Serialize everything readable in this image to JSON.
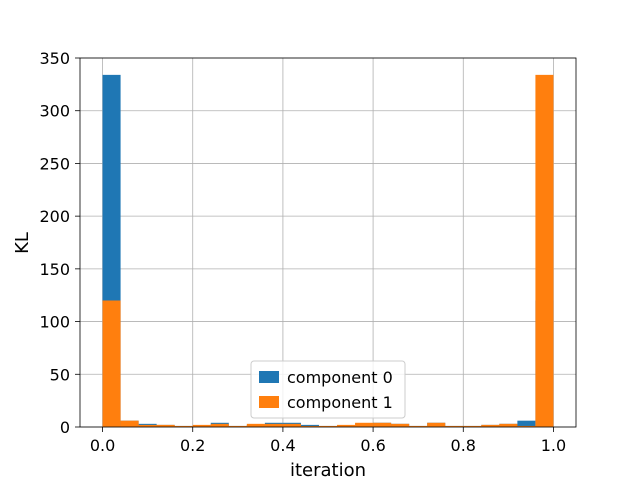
{
  "chart_data": {
    "type": "bar",
    "xlabel": "iteration",
    "ylabel": "KL",
    "xlim": [
      -0.05,
      1.05
    ],
    "ylim": [
      0,
      350
    ],
    "xticks": [
      0.0,
      0.2,
      0.4,
      0.6,
      0.8,
      1.0
    ],
    "xtick_labels": [
      "0.0",
      "0.2",
      "0.4",
      "0.6",
      "0.8",
      "1.0"
    ],
    "yticks": [
      0,
      50,
      100,
      150,
      200,
      250,
      300,
      350
    ],
    "ytick_labels": [
      "0",
      "50",
      "100",
      "150",
      "200",
      "250",
      "300",
      "350"
    ],
    "grid": true,
    "legend_position": "lower-center",
    "bin_edges": [
      0.0,
      0.04,
      0.08,
      0.12,
      0.16,
      0.2,
      0.24,
      0.28,
      0.32,
      0.36,
      0.4,
      0.44,
      0.48,
      0.52,
      0.56,
      0.6,
      0.64,
      0.68,
      0.72,
      0.76,
      0.8,
      0.84,
      0.88,
      0.92,
      0.96,
      1.0
    ],
    "series": [
      {
        "name": "component 0",
        "color": "#1f77b4",
        "values": [
          334,
          6,
          3,
          2,
          1,
          1,
          4,
          1,
          2,
          4,
          4,
          2,
          1,
          1,
          2,
          4,
          3,
          1,
          4,
          1,
          1,
          2,
          3,
          6,
          120
        ]
      },
      {
        "name": "component 1",
        "color": "#ff7f0e",
        "values": [
          120,
          6,
          2,
          2,
          1,
          2,
          3,
          1,
          3,
          3,
          3,
          1,
          1,
          2,
          4,
          4,
          3,
          1,
          4,
          1,
          1,
          2,
          3,
          1,
          334
        ]
      }
    ]
  }
}
